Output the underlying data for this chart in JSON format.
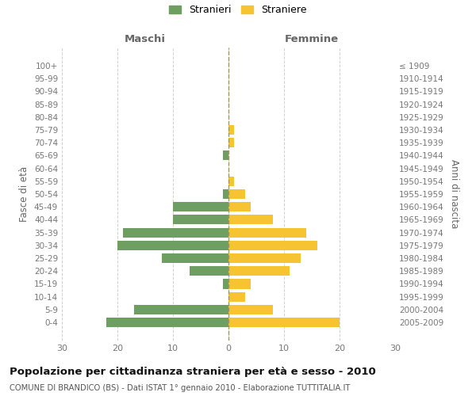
{
  "age_groups": [
    "0-4",
    "5-9",
    "10-14",
    "15-19",
    "20-24",
    "25-29",
    "30-34",
    "35-39",
    "40-44",
    "45-49",
    "50-54",
    "55-59",
    "60-64",
    "65-69",
    "70-74",
    "75-79",
    "80-84",
    "85-89",
    "90-94",
    "95-99",
    "100+"
  ],
  "birth_years": [
    "2005-2009",
    "2000-2004",
    "1995-1999",
    "1990-1994",
    "1985-1989",
    "1980-1984",
    "1975-1979",
    "1970-1974",
    "1965-1969",
    "1960-1964",
    "1955-1959",
    "1950-1954",
    "1945-1949",
    "1940-1944",
    "1935-1939",
    "1930-1934",
    "1925-1929",
    "1920-1924",
    "1915-1919",
    "1910-1914",
    "≤ 1909"
  ],
  "males": [
    22,
    17,
    0,
    1,
    7,
    12,
    20,
    19,
    10,
    10,
    1,
    0,
    0,
    1,
    0,
    0,
    0,
    0,
    0,
    0,
    0
  ],
  "females": [
    20,
    8,
    3,
    4,
    11,
    13,
    16,
    14,
    8,
    4,
    3,
    1,
    0,
    0,
    1,
    1,
    0,
    0,
    0,
    0,
    0
  ],
  "male_color": "#6e9e62",
  "female_color": "#f5c430",
  "grid_color": "#d0d0d0",
  "center_line_color": "#999966",
  "title": "Popolazione per cittadinanza straniera per età e sesso - 2010",
  "subtitle": "COMUNE DI BRANDICO (BS) - Dati ISTAT 1° gennaio 2010 - Elaborazione TUTTITALIA.IT",
  "ylabel_left": "Fasce di età",
  "ylabel_right": "Anni di nascita",
  "label_maschi": "Maschi",
  "label_femmine": "Femmine",
  "legend_stranieri": "Stranieri",
  "legend_straniere": "Straniere",
  "xlim": 30,
  "bar_height": 0.75,
  "tick_color": "#777777",
  "label_color": "#666666",
  "title_color": "#111111",
  "subtitle_color": "#555555"
}
